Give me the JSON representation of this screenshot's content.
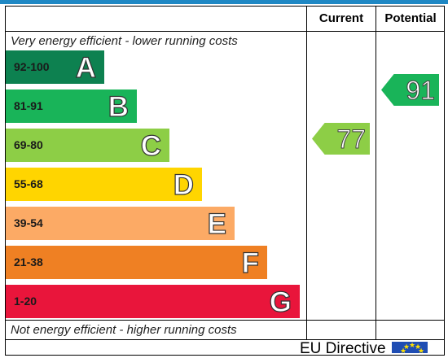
{
  "header": {
    "current": "Current",
    "potential": "Potential"
  },
  "captions": {
    "top": "Very energy efficient - lower running costs",
    "bottom": "Not energy efficient - higher running costs"
  },
  "bands": [
    {
      "range": "92-100",
      "letter": "A",
      "color": "#0d8150"
    },
    {
      "range": "81-91",
      "letter": "B",
      "color": "#19b459"
    },
    {
      "range": "69-80",
      "letter": "C",
      "color": "#8dce46"
    },
    {
      "range": "55-68",
      "letter": "D",
      "color": "#ffd500"
    },
    {
      "range": "39-54",
      "letter": "E",
      "color": "#fcaa65"
    },
    {
      "range": "21-38",
      "letter": "F",
      "color": "#ef8023"
    },
    {
      "range": "1-20",
      "letter": "G",
      "color": "#e9153b"
    }
  ],
  "ratings": {
    "current": {
      "value": "77",
      "band": "C",
      "color": "#8dce46"
    },
    "potential": {
      "value": "91",
      "band": "B",
      "color": "#19b459"
    }
  },
  "footer": {
    "text": "EU Directive"
  }
}
